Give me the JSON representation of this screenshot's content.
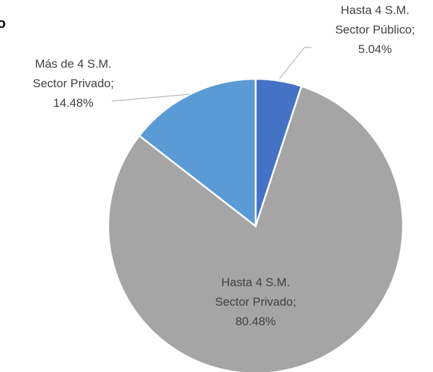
{
  "chart_data": {
    "type": "pie",
    "title": "o",
    "categories": [
      [
        "Hasta 4 S.M.",
        "Sector Público"
      ],
      [
        "Hasta  4 S.M.",
        "Sector Privado"
      ],
      [
        "Más de 4 S.M.",
        "Sector Privado"
      ]
    ],
    "values": [
      5.04,
      80.48,
      14.48
    ],
    "value_labels": [
      "5.04%",
      "80.48%",
      "14.48%"
    ],
    "label_separator": ";",
    "colors": [
      "#4472c4",
      "#a5a5a5",
      "#5b9bd5"
    ]
  }
}
